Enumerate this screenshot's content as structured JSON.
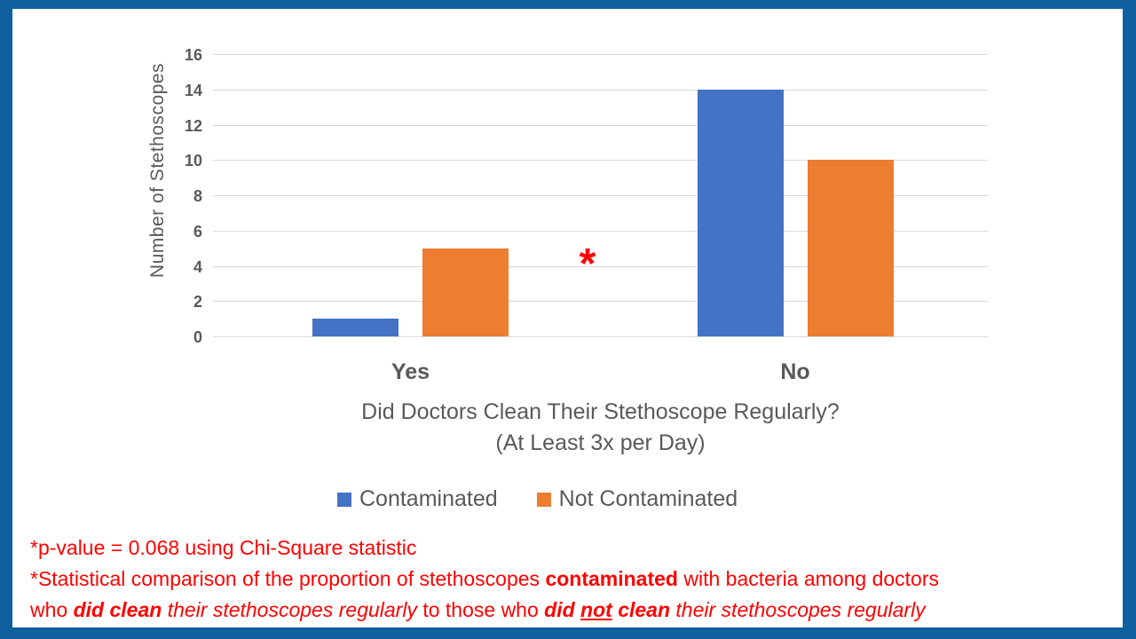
{
  "frame": {
    "border_color": "#0f609f",
    "background": "#ffffff"
  },
  "chart_data": {
    "type": "bar",
    "categories": [
      "Yes",
      "No"
    ],
    "series": [
      {
        "name": "Contaminated",
        "color": "#4472c4",
        "values": [
          1,
          14
        ]
      },
      {
        "name": "Not Contaminated",
        "color": "#ed7d31",
        "values": [
          5,
          10
        ]
      }
    ],
    "title": "",
    "xlabel_line1": "Did Doctors Clean Their Stethoscope Regularly?",
    "xlabel_line2": "(At Least 3x per Day)",
    "ylabel": "Number of Stethoscopes",
    "ylim": [
      0,
      16
    ],
    "yticks": [
      0,
      2,
      4,
      6,
      8,
      10,
      12,
      14,
      16
    ],
    "grid": true,
    "gridline_color": "#d9d9d9",
    "legend_position": "bottom",
    "text_color": "#595959",
    "annotation": {
      "text": "*",
      "color": "#ff0000",
      "location": "between groups at value 4"
    }
  },
  "footnotes": {
    "color": "#ff0000",
    "line1": "*p-value = 0.068 using Chi-Square statistic",
    "line2": [
      {
        "text": "*Statistical comparison of the proportion of stethoscopes ",
        "style": ""
      },
      {
        "text": "contaminated",
        "style": "b"
      },
      {
        "text": " with bacteria among doctors",
        "style": ""
      }
    ],
    "line3": [
      {
        "text": "who ",
        "style": ""
      },
      {
        "text": "did clean",
        "style": "bi"
      },
      {
        "text": " ",
        "style": ""
      },
      {
        "text": "their stethoscopes regularly",
        "style": "i"
      },
      {
        "text": " to those who ",
        "style": ""
      },
      {
        "text": "did ",
        "style": "bi"
      },
      {
        "text": "not",
        "style": "biu"
      },
      {
        "text": " clean",
        "style": "bi"
      },
      {
        "text": " ",
        "style": ""
      },
      {
        "text": "their stethoscopes regularly",
        "style": "i"
      }
    ]
  }
}
